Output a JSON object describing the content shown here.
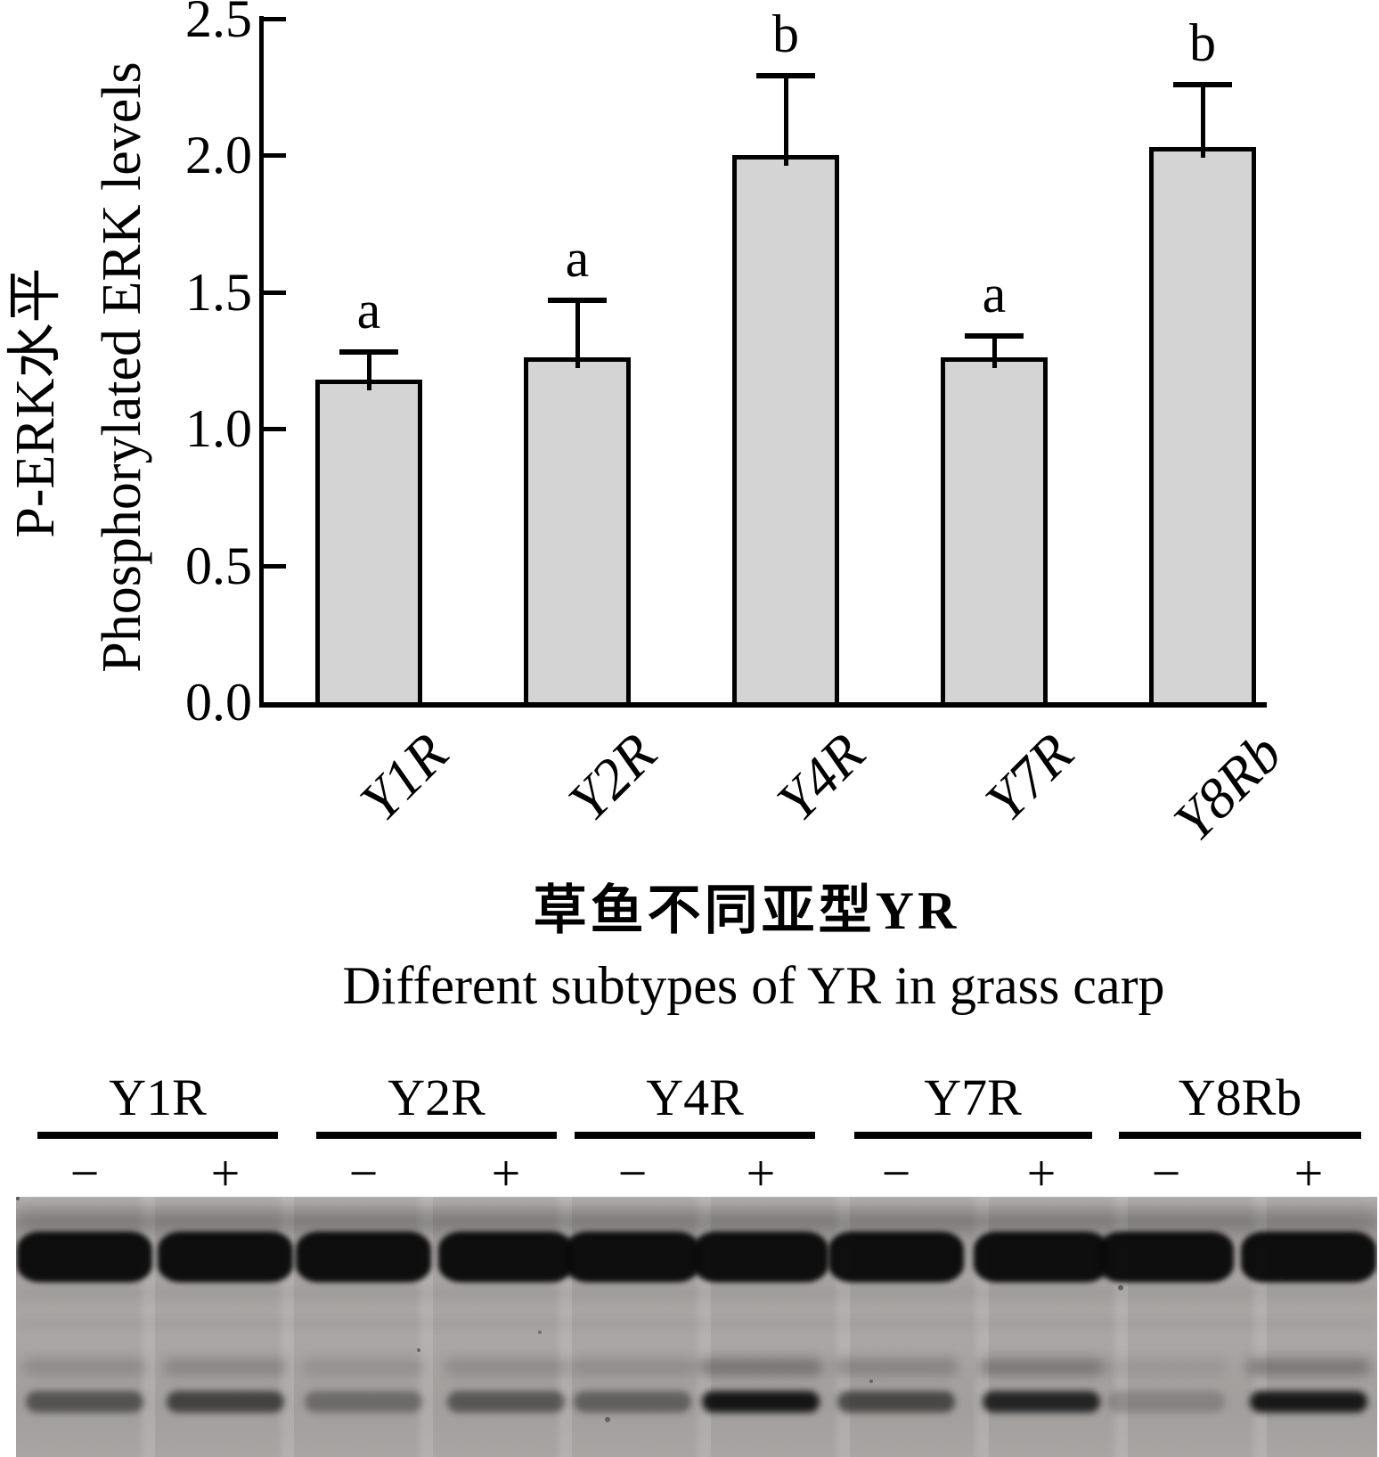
{
  "chart_data": {
    "type": "bar",
    "categories": [
      "Y1R",
      "Y2R",
      "Y4R",
      "Y7R",
      "Y8Rb"
    ],
    "values": [
      1.18,
      1.26,
      2.0,
      1.26,
      2.03
    ],
    "errors_upper": [
      0.11,
      0.22,
      0.3,
      0.09,
      0.24
    ],
    "significance_letters": [
      "a",
      "a",
      "b",
      "a",
      "b"
    ],
    "ylabel_line1": "P-ERK水平",
    "ylabel_line2": "Phosphorylated ERK levels",
    "xlabel_line1": "草鱼不同亚型YR",
    "xlabel_line2": "Different subtypes of YR in grass carp",
    "ytick_labels": [
      "2.5",
      "2.0",
      "1.5",
      "1.0",
      "0.5",
      "0.0"
    ],
    "ylim": [
      0.0,
      2.5
    ],
    "grid": false,
    "legend": "none",
    "bar_fill_color": "#d4d4d4",
    "axis_color": "#000000",
    "error_bar_style": "upper-cap"
  },
  "blot": {
    "background_color": "#a5a2a0",
    "groups": [
      {
        "label": "Y1R",
        "conditions": [
          "−",
          "+"
        ]
      },
      {
        "label": "Y2R",
        "conditions": [
          "−",
          "+"
        ]
      },
      {
        "label": "Y4R",
        "conditions": [
          "−",
          "+"
        ]
      },
      {
        "label": "Y7R",
        "conditions": [
          "−",
          "+"
        ]
      },
      {
        "label": "Y8Rb",
        "conditions": [
          "−",
          "+"
        ]
      }
    ],
    "lanes": [
      {
        "group": "Y1R",
        "condition": "−",
        "total_erk_band": 1.0,
        "p_erk_band": 0.5,
        "smear": 0.16
      },
      {
        "group": "Y1R",
        "condition": "+",
        "total_erk_band": 1.0,
        "p_erk_band": 0.62,
        "smear": 0.2
      },
      {
        "group": "Y2R",
        "condition": "−",
        "total_erk_band": 1.0,
        "p_erk_band": 0.34,
        "smear": 0.12
      },
      {
        "group": "Y2R",
        "condition": "+",
        "total_erk_band": 1.0,
        "p_erk_band": 0.48,
        "smear": 0.16
      },
      {
        "group": "Y4R",
        "condition": "−",
        "total_erk_band": 1.0,
        "p_erk_band": 0.42,
        "smear": 0.15
      },
      {
        "group": "Y4R",
        "condition": "+",
        "total_erk_band": 1.0,
        "p_erk_band": 0.92,
        "smear": 0.32
      },
      {
        "group": "Y7R",
        "condition": "−",
        "total_erk_band": 1.0,
        "p_erk_band": 0.58,
        "smear": 0.22
      },
      {
        "group": "Y7R",
        "condition": "+",
        "total_erk_band": 1.0,
        "p_erk_band": 0.82,
        "smear": 0.3
      },
      {
        "group": "Y8Rb",
        "condition": "−",
        "total_erk_band": 1.0,
        "p_erk_band": 0.18,
        "smear": 0.08
      },
      {
        "group": "Y8Rb",
        "condition": "+",
        "total_erk_band": 1.0,
        "p_erk_band": 0.9,
        "smear": 0.3
      }
    ]
  }
}
